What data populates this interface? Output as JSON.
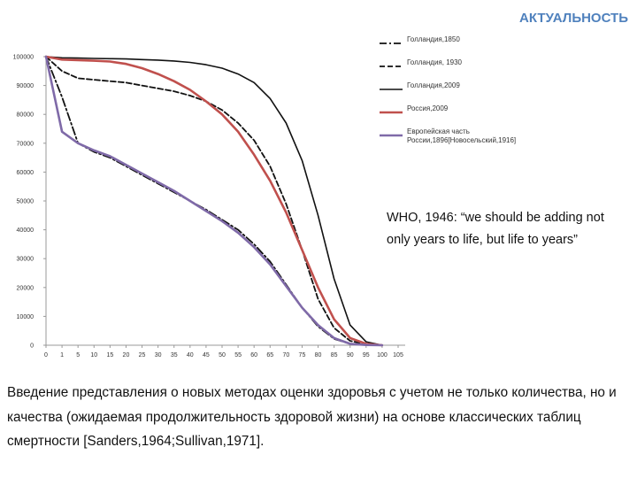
{
  "header": {
    "title": "АКТУАЛЬНОСТЬ"
  },
  "quote": {
    "text": "WHO, 1946: “we should be adding not only years to life, but life to years”"
  },
  "body": {
    "text": "Введение представления о новых методах оценки здоровья с учетом не только количества, но и качества (ожидаемая продолжительность здоровой жизни) на основе классических таблиц смертности [Sanders,1964;Sullivan,1971]."
  },
  "chart_data": {
    "type": "line",
    "title": "",
    "xlabel": "",
    "ylabel": "",
    "xlim": [
      0,
      105
    ],
    "ylim": [
      0,
      100000
    ],
    "x_ticks": [
      0,
      1,
      5,
      10,
      15,
      20,
      25,
      30,
      35,
      40,
      45,
      50,
      55,
      60,
      65,
      70,
      75,
      80,
      85,
      90,
      95,
      100,
      105
    ],
    "x_tick_labels": [
      "0",
      "1",
      "5",
      "10",
      "15",
      "20",
      "25",
      "30",
      "35",
      "40",
      "45",
      "50",
      "55",
      "60",
      "65",
      "70",
      "75",
      "80",
      "85",
      "90",
      "95",
      "100",
      "105"
    ],
    "y_ticks": [
      0,
      10000,
      20000,
      30000,
      40000,
      50000,
      60000,
      70000,
      80000,
      90000,
      100000
    ],
    "y_tick_labels": [
      "0",
      "10000",
      "20000",
      "30000",
      "40000",
      "50000",
      "60000",
      "70000",
      "80000",
      "90000",
      "100000"
    ],
    "grid": false,
    "legend_position": "right",
    "series": [
      {
        "name": "Голландия,1850",
        "color": "#111111",
        "dash": "dashdot",
        "x": [
          0,
          1,
          5,
          10,
          15,
          20,
          25,
          30,
          35,
          40,
          45,
          50,
          55,
          60,
          65,
          70,
          75,
          80,
          85,
          90,
          95,
          100
        ],
        "y": [
          100000,
          86000,
          70000,
          67000,
          65000,
          62000,
          59000,
          56000,
          53000,
          50000,
          47000,
          43500,
          40000,
          35000,
          29000,
          21000,
          13000,
          6500,
          2200,
          500,
          80,
          0
        ]
      },
      {
        "name": "Голландия, 1930",
        "color": "#111111",
        "dash": "dashed",
        "x": [
          0,
          1,
          5,
          10,
          15,
          20,
          25,
          30,
          35,
          40,
          45,
          50,
          55,
          60,
          65,
          70,
          75,
          80,
          85,
          90,
          95,
          100
        ],
        "y": [
          100000,
          95000,
          92500,
          92000,
          91500,
          91000,
          90000,
          89000,
          88000,
          86500,
          84500,
          81500,
          77000,
          71000,
          62000,
          49000,
          33000,
          16000,
          6000,
          1500,
          300,
          0
        ]
      },
      {
        "name": "Голландия,2009",
        "color": "#111111",
        "dash": "solid",
        "x": [
          0,
          1,
          5,
          10,
          15,
          20,
          25,
          30,
          35,
          40,
          45,
          50,
          55,
          60,
          65,
          70,
          75,
          80,
          85,
          90,
          95,
          100
        ],
        "y": [
          100000,
          99600,
          99500,
          99400,
          99300,
          99200,
          99000,
          98800,
          98500,
          98000,
          97200,
          96000,
          94000,
          91000,
          85500,
          77000,
          64000,
          45000,
          23000,
          7000,
          1200,
          0
        ]
      },
      {
        "name": "Россия,2009",
        "color": "#c0504d",
        "dash": "solid",
        "x": [
          0,
          1,
          5,
          10,
          15,
          20,
          25,
          30,
          35,
          40,
          45,
          50,
          55,
          60,
          65,
          70,
          75,
          80,
          85,
          90,
          95,
          100
        ],
        "y": [
          100000,
          99000,
          98800,
          98600,
          98300,
          97500,
          96000,
          94000,
          91500,
          88500,
          84500,
          80000,
          74000,
          66000,
          57000,
          46000,
          33000,
          20000,
          9000,
          2500,
          500,
          0
        ]
      },
      {
        "name": "Европейская часть России,1896[Новосельский,1916]",
        "color": "#7f6aa8",
        "dash": "solid",
        "x": [
          0,
          1,
          5,
          10,
          15,
          20,
          25,
          30,
          35,
          40,
          45,
          50,
          55,
          60,
          65,
          70,
          75,
          80,
          85,
          90,
          95,
          100
        ],
        "y": [
          100000,
          74000,
          70000,
          67500,
          65500,
          62500,
          59500,
          56500,
          53500,
          50000,
          46500,
          43000,
          39000,
          34000,
          28000,
          20500,
          13000,
          7000,
          2500,
          500,
          100,
          0
        ]
      }
    ]
  }
}
